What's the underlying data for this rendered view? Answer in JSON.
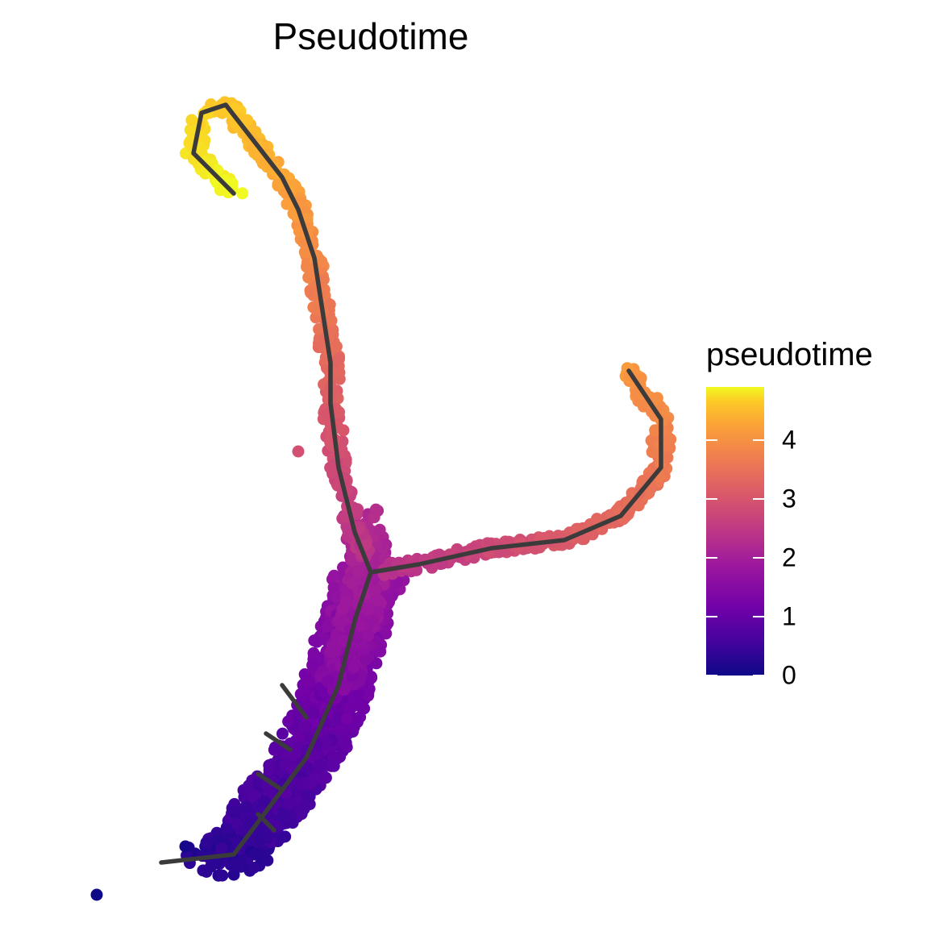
{
  "chart_data": {
    "type": "scatter",
    "title": "Pseudotime",
    "legend": {
      "title": "pseudotime",
      "ticks": [
        "0",
        "1",
        "2",
        "3",
        "4"
      ],
      "tick_values": [
        0,
        1,
        2,
        3,
        4
      ],
      "range": [
        0,
        4.9
      ],
      "placement": "right",
      "colormap": [
        "#0d0887",
        "#46039f",
        "#7201a8",
        "#9c179e",
        "#bd3786",
        "#d8576b",
        "#ed7953",
        "#fb9f3a",
        "#fdca26",
        "#f0f921"
      ]
    },
    "grid": false,
    "axes": false,
    "trajectory": {
      "color": "#3b3b3b",
      "branches": [
        {
          "name": "root-to-branchpoint",
          "x": [
            0.18,
            0.27,
            0.3,
            0.36,
            0.4,
            0.42,
            0.44
          ],
          "y": [
            0.11,
            0.12,
            0.16,
            0.24,
            0.33,
            0.41,
            0.47
          ]
        },
        {
          "name": "branchpoint-to-top",
          "x": [
            0.44,
            0.42,
            0.4,
            0.39,
            0.39,
            0.37,
            0.35,
            0.33,
            0.26,
            0.23,
            0.22,
            0.27
          ],
          "y": [
            0.47,
            0.52,
            0.6,
            0.68,
            0.73,
            0.86,
            0.92,
            0.96,
            1.05,
            1.04,
            0.99,
            0.94
          ]
        },
        {
          "name": "branchpoint-to-right",
          "x": [
            0.44,
            0.5,
            0.59,
            0.68,
            0.75,
            0.8,
            0.8,
            0.76
          ],
          "y": [
            0.47,
            0.48,
            0.5,
            0.51,
            0.54,
            0.6,
            0.66,
            0.72
          ]
        },
        {
          "name": "side-1",
          "x": [
            0.32,
            0.3
          ],
          "y": [
            0.15,
            0.17
          ]
        },
        {
          "name": "side-2",
          "x": [
            0.33,
            0.3
          ],
          "y": [
            0.2,
            0.22
          ]
        },
        {
          "name": "side-3",
          "x": [
            0.34,
            0.31
          ],
          "y": [
            0.25,
            0.27
          ]
        },
        {
          "name": "side-4",
          "x": [
            0.36,
            0.33
          ],
          "y": [
            0.29,
            0.33
          ]
        }
      ]
    },
    "point_regions": [
      {
        "x_range": [
          0.25,
          0.44
        ],
        "y_range": [
          0.1,
          0.42
        ],
        "pseudotime_range": [
          0.0,
          1.6
        ],
        "count": 1100
      },
      {
        "x_range": [
          0.39,
          0.47
        ],
        "y_range": [
          0.38,
          0.55
        ],
        "pseudotime_range": [
          1.3,
          2.1
        ],
        "count": 420
      },
      {
        "x_range": [
          0.47,
          0.76
        ],
        "y_range": [
          0.47,
          0.54
        ],
        "pseudotime_range": [
          2.1,
          2.9
        ],
        "count": 230
      },
      {
        "x_range": [
          0.73,
          0.82
        ],
        "y_range": [
          0.54,
          0.74
        ],
        "pseudotime_range": [
          2.9,
          3.7
        ],
        "count": 170
      },
      {
        "x_range": [
          0.39,
          0.44
        ],
        "y_range": [
          0.54,
          0.86
        ],
        "pseudotime_range": [
          2.0,
          3.1
        ],
        "count": 170
      },
      {
        "x_range": [
          0.33,
          0.39
        ],
        "y_range": [
          0.84,
          1.04
        ],
        "pseudotime_range": [
          3.1,
          3.9
        ],
        "count": 130
      },
      {
        "x_range": [
          0.2,
          0.33
        ],
        "y_range": [
          0.9,
          1.06
        ],
        "pseudotime_range": [
          3.9,
          4.9
        ],
        "count": 190
      }
    ],
    "outliers": [
      {
        "x": 0.1,
        "y": 0.07,
        "pseudotime": 0.0
      },
      {
        "x": 0.35,
        "y": 0.62,
        "pseudotime": 2.6
      },
      {
        "x": 0.21,
        "y": 0.13,
        "pseudotime": 0.1
      }
    ]
  }
}
